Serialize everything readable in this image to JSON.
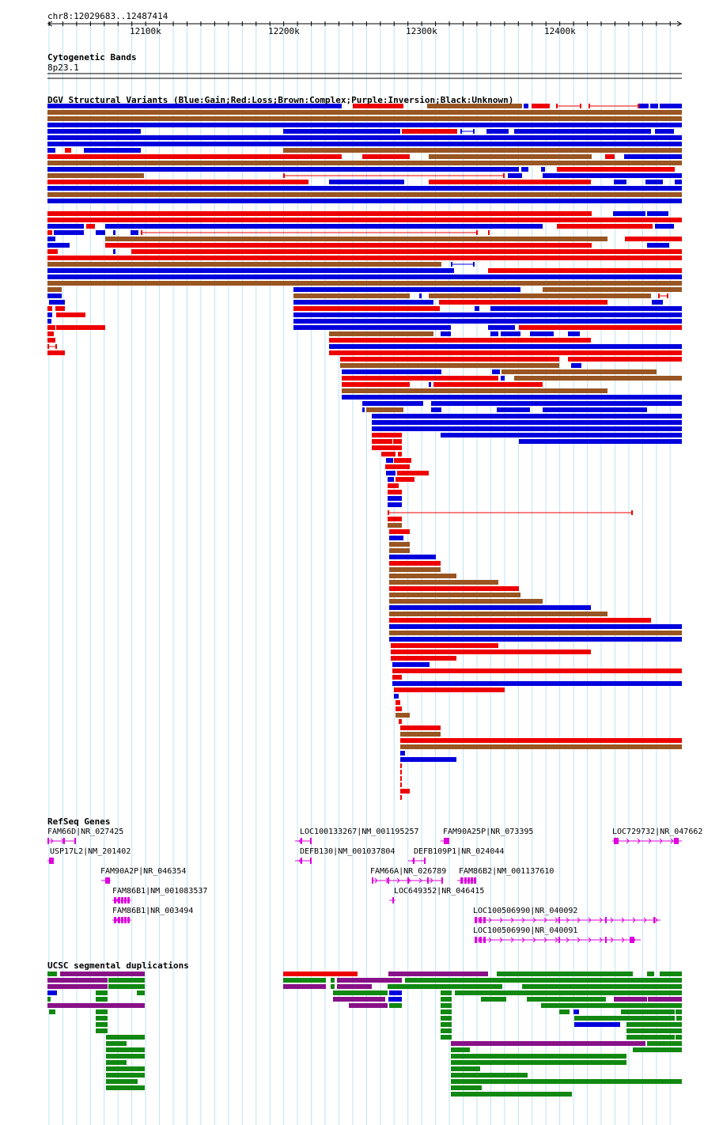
{
  "ruler": {
    "position": "chr8:12029683..12487414",
    "ticks": [
      {
        "label": "12100k",
        "pos": 12100000
      },
      {
        "label": "12200k",
        "pos": 12200000
      },
      {
        "label": "12300k",
        "pos": 12300000
      },
      {
        "label": "12400k",
        "pos": 12400000
      }
    ]
  },
  "cytoband": {
    "title": "Cytogenetic Bands",
    "band": "8p23.1"
  },
  "dgv": {
    "title": "DGV Structural Variants (Blue:Gain;Red:Loss;Brown:Complex;Purple:Inversion;Black:Unknown)",
    "colors": {
      "gain": "#0000dd",
      "loss": "#ee0000",
      "complex": "#995522",
      "inversion": "#881188",
      "unknown": "#000000"
    }
  },
  "refseq": {
    "title": "RefSeq Genes",
    "gene_color": "#dd00dd",
    "genes": [
      {
        "name": "FAM66D|NR_027425",
        "strand": "+"
      },
      {
        "name": "USP17L2|NM_201402",
        "strand": "-"
      },
      {
        "name": "FAM90A2P|NR_046354",
        "strand": "-"
      },
      {
        "name": "FAM86B1|NM_001083537",
        "strand": "-"
      },
      {
        "name": "FAM86B1|NR_003494",
        "strand": "-"
      },
      {
        "name": "LOC100133267|NM_001195257",
        "strand": "-"
      },
      {
        "name": "DEFB130|NM_001037804",
        "strand": "-"
      },
      {
        "name": "FAM66A|NR_026789",
        "strand": "+"
      },
      {
        "name": "LOC649352|NR_046415",
        "strand": "-"
      },
      {
        "name": "FAM90A25P|NR_073395",
        "strand": "-"
      },
      {
        "name": "DEFB109P1|NR_024044",
        "strand": "-"
      },
      {
        "name": "FAM86B2|NM_001137610",
        "strand": "-"
      },
      {
        "name": "LOC100506990|NR_040092",
        "strand": "+"
      },
      {
        "name": "LOC100506990|NR_040091",
        "strand": "+"
      },
      {
        "name": "LOC729732|NR_047662",
        "strand": "+"
      }
    ]
  },
  "segdups": {
    "title": "UCSC segmental duplications",
    "colors": {
      "red": "#ee0000",
      "purple": "#881188",
      "green": "#118811",
      "blue": "#0000dd"
    }
  }
}
